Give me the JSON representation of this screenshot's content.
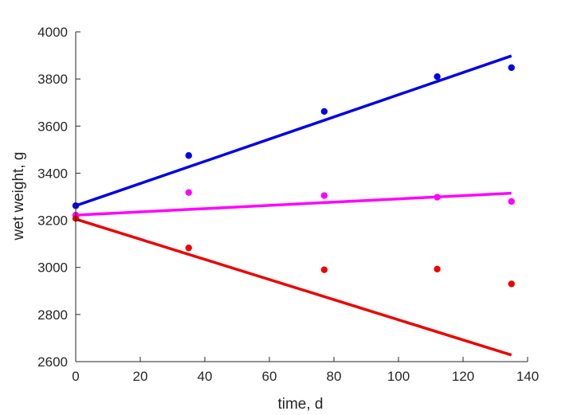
{
  "chart_data": {
    "type": "scatter",
    "title": "",
    "xlabel": "time, d",
    "ylabel": "wet weight, g",
    "xlim": [
      0,
      140
    ],
    "ylim": [
      2600,
      4000
    ],
    "xticks": [
      0,
      20,
      40,
      60,
      80,
      100,
      120,
      140
    ],
    "yticks": [
      2600,
      2800,
      3000,
      3200,
      3400,
      3600,
      3800,
      4000
    ],
    "grid": false,
    "legend": "none",
    "series": [
      {
        "color": "#0000e6",
        "x": [
          0,
          35,
          77,
          112,
          135
        ],
        "y": [
          3262,
          3475,
          3662,
          3810,
          3848
        ],
        "fit": {
          "x": [
            0,
            135
          ],
          "y": [
            3262,
            3898
          ]
        }
      },
      {
        "color": "#ff00ff",
        "x": [
          0,
          35,
          77,
          112,
          135
        ],
        "y": [
          3222,
          3318,
          3305,
          3298,
          3280
        ],
        "fit": {
          "x": [
            0,
            135
          ],
          "y": [
            3222,
            3315
          ]
        }
      },
      {
        "color": "#ee0000",
        "x": [
          0,
          35,
          77,
          112,
          135
        ],
        "y": [
          3208,
          3083,
          2990,
          2993,
          2930
        ],
        "fit": {
          "x": [
            0,
            135
          ],
          "y": [
            3205,
            2628
          ]
        }
      }
    ]
  }
}
